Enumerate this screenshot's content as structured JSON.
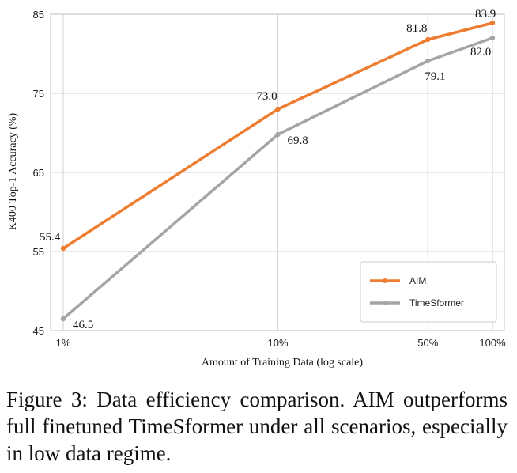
{
  "chart_data": {
    "type": "line",
    "xlabel": "Amount of Training Data (log scale)",
    "ylabel": "K400 Top-1 Accuracy (%)",
    "x_scale": "log",
    "categories": [
      "1%",
      "10%",
      "50%",
      "100%"
    ],
    "x": [
      1,
      10,
      50,
      100
    ],
    "ylim": [
      45,
      85
    ],
    "yticks": [
      "45",
      "55",
      "65",
      "75",
      "85"
    ],
    "grid": true,
    "legend_position": "bottom-right",
    "series": [
      {
        "name": "AIM",
        "color": "#EE7D31",
        "values": [
          55.4,
          73.0,
          81.8,
          83.9
        ],
        "labels": [
          "55.4",
          "73.0",
          "81.8",
          "83.9"
        ]
      },
      {
        "name": "TimeSformer",
        "color": "#A5A5A5",
        "values": [
          46.5,
          69.8,
          79.1,
          82.0
        ],
        "labels": [
          "46.5",
          "69.8",
          "79.1",
          "82.0"
        ]
      }
    ]
  },
  "caption": "Figure 3: Data efficiency comparison. AIM outperforms full finetuned TimeSformer under all scenarios, especially in low data regime."
}
